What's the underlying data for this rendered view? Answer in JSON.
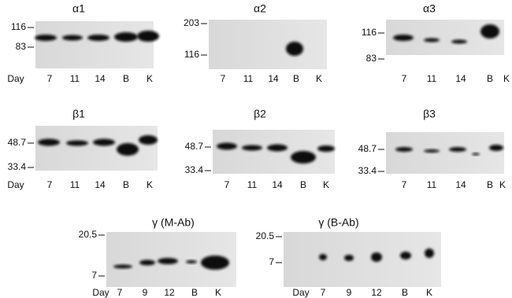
{
  "panels": [
    {
      "title": "α1",
      "markers": [
        "116",
        "83"
      ],
      "lane_label": "Day",
      "lanes": [
        "7",
        "11",
        "14",
        "B",
        "K"
      ]
    },
    {
      "title": "α2",
      "markers": [
        "203",
        "116"
      ],
      "lanes": [
        "7",
        "11",
        "14",
        "B",
        "K"
      ]
    },
    {
      "title": "α3",
      "markers": [
        "116",
        "83"
      ],
      "lanes": [
        "7",
        "11",
        "14",
        "B",
        "K"
      ]
    },
    {
      "title": "β1",
      "markers": [
        "48.7",
        "33.4"
      ],
      "lane_label": "Day",
      "lanes": [
        "7",
        "11",
        "14",
        "B",
        "K"
      ]
    },
    {
      "title": "β2",
      "markers": [
        "48.7",
        "33.4"
      ],
      "lanes": [
        "7",
        "11",
        "14",
        "B",
        "K"
      ]
    },
    {
      "title": "β3",
      "markers": [
        "48.7",
        "33.4"
      ],
      "lanes": [
        "7",
        "11",
        "14",
        "B",
        "K"
      ]
    },
    {
      "title": "γ (M-Ab)",
      "markers": [
        "20.5",
        "7"
      ],
      "lane_label": "Day",
      "lanes": [
        "7",
        "9",
        "12",
        "B",
        "K"
      ]
    },
    {
      "title": "γ (B-Ab)",
      "markers": [
        "20.5",
        "7"
      ],
      "lane_label": "Day",
      "lanes": [
        "7",
        "9",
        "12",
        "B",
        "K"
      ]
    }
  ]
}
